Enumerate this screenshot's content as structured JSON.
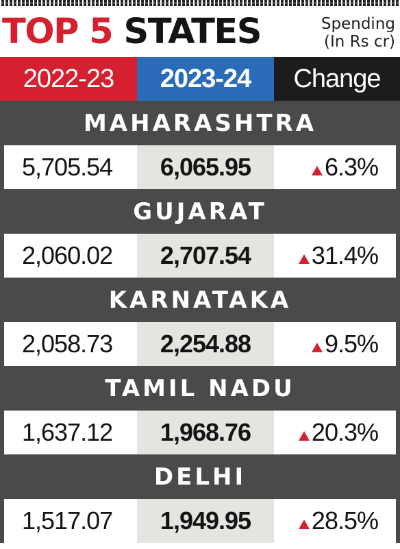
{
  "header": {
    "title_main": "TOP 5",
    "title_rest": "STATES",
    "subtitle_line1": "Spending",
    "subtitle_line2": "(In Rs cr)"
  },
  "columns": [
    "2022-23",
    "2023-24",
    "Change"
  ],
  "colors": {
    "accent_red": "#d4202f",
    "accent_blue": "#2b6cb8",
    "dark": "#1c1c1c",
    "band_gray": "#4a4a4a",
    "highlight_cell": "#e4e5e0"
  },
  "chart_data": {
    "type": "table",
    "title": "TOP 5 STATES",
    "subtitle": "Spending (In Rs cr)",
    "columns": [
      "2022-23",
      "2023-24",
      "Change"
    ],
    "rows": [
      {
        "state": "MAHARASHTRA",
        "y2022_23": "5,705.54",
        "y2023_24": "6,065.95",
        "change": "6.3%",
        "direction": "up"
      },
      {
        "state": "GUJARAT",
        "y2022_23": "2,060.02",
        "y2023_24": "2,707.54",
        "change": "31.4%",
        "direction": "up"
      },
      {
        "state": "KARNATAKA",
        "y2022_23": "2,058.73",
        "y2023_24": "2,254.88",
        "change": "9.5%",
        "direction": "up"
      },
      {
        "state": "TAMIL NADU",
        "y2022_23": "1,637.12",
        "y2023_24": "1,968.76",
        "change": "20.3%",
        "direction": "up"
      },
      {
        "state": "DELHI",
        "y2022_23": "1,517.07",
        "y2023_24": "1,949.95",
        "change": "28.5%",
        "direction": "up"
      }
    ]
  }
}
